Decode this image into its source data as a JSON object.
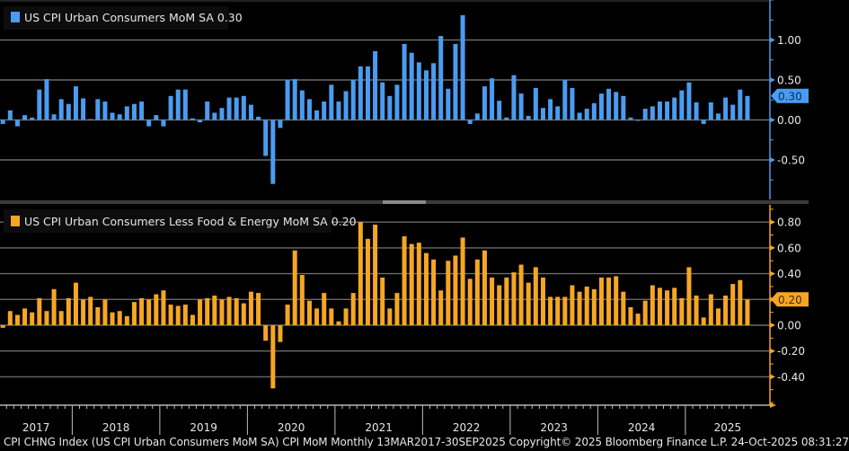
{
  "footer_text": "CPI CHNG Index (US CPI Urban Consumers MoM SA) CPI MoM Monthly 13MAR2017-30SEP2025 Copyright© 2025 Bloomberg Finance L.P. 24-Oct-2025 08:31:27",
  "colors": {
    "headline": "#4a9cf0",
    "core": "#f5a623",
    "background": "#000000",
    "grid": "#6a6a6a"
  },
  "chart_data": [
    {
      "type": "bar",
      "title": "US CPI Urban Consumers MoM SA",
      "legend": "US CPI Urban Consumers MoM SA 0.30",
      "last_value_label": "0.30",
      "start_month": "2017-03",
      "end_month": "2025-09",
      "frequency": "monthly",
      "ylim": [
        -0.95,
        1.5
      ],
      "yticks": [
        1.0,
        0.5,
        0.0,
        -0.5
      ],
      "ytick_labels": [
        "1.00",
        "0.50",
        "0.00",
        "-0.50"
      ],
      "grid": true,
      "legend_position": "top-left",
      "values": [
        -0.05,
        0.12,
        -0.08,
        0.06,
        0.03,
        0.38,
        0.51,
        0.07,
        0.26,
        0.2,
        0.42,
        0.27,
        0.01,
        0.26,
        0.23,
        0.09,
        0.07,
        0.17,
        0.2,
        0.23,
        -0.08,
        0.06,
        -0.08,
        0.3,
        0.38,
        0.38,
        0.02,
        -0.03,
        0.23,
        0.09,
        0.15,
        0.28,
        0.28,
        0.3,
        0.19,
        0.04,
        -0.45,
        -0.8,
        -0.1,
        0.5,
        0.51,
        0.37,
        0.26,
        0.12,
        0.23,
        0.44,
        0.23,
        0.36,
        0.5,
        0.67,
        0.67,
        0.86,
        0.47,
        0.3,
        0.44,
        0.95,
        0.84,
        0.72,
        0.62,
        0.71,
        1.05,
        0.39,
        0.95,
        1.31,
        -0.05,
        0.08,
        0.42,
        0.52,
        0.24,
        0.03,
        0.56,
        0.33,
        0.05,
        0.4,
        0.15,
        0.26,
        0.17,
        0.5,
        0.4,
        0.09,
        0.14,
        0.21,
        0.33,
        0.39,
        0.35,
        0.3,
        0.03,
        0.0,
        0.14,
        0.17,
        0.23,
        0.23,
        0.28,
        0.37,
        0.47,
        0.22,
        -0.05,
        0.22,
        0.08,
        0.28,
        0.19,
        0.38,
        0.3
      ]
    },
    {
      "type": "bar",
      "title": "US CPI Urban Consumers Less Food & Energy MoM SA",
      "legend": "US CPI Urban Consumers Less Food & Energy MoM SA 0.20",
      "last_value_label": "0.20",
      "start_month": "2017-03",
      "end_month": "2025-09",
      "frequency": "monthly",
      "ylim": [
        -0.62,
        0.93
      ],
      "yticks": [
        0.8,
        0.6,
        0.4,
        0.2,
        0.0,
        -0.2,
        -0.4
      ],
      "ytick_labels": [
        "0.80",
        "0.60",
        "0.40",
        "0.20",
        "0.00",
        "-0.20",
        "-0.40"
      ],
      "grid": true,
      "legend_position": "top-left",
      "values": [
        -0.02,
        0.11,
        0.08,
        0.13,
        0.1,
        0.21,
        0.11,
        0.28,
        0.11,
        0.21,
        0.33,
        0.2,
        0.22,
        0.14,
        0.2,
        0.1,
        0.11,
        0.07,
        0.18,
        0.21,
        0.2,
        0.24,
        0.27,
        0.16,
        0.15,
        0.16,
        0.08,
        0.2,
        0.21,
        0.23,
        0.2,
        0.22,
        0.21,
        0.17,
        0.26,
        0.25,
        -0.12,
        -0.49,
        -0.13,
        0.16,
        0.58,
        0.39,
        0.19,
        0.13,
        0.25,
        0.13,
        0.03,
        0.13,
        0.25,
        0.8,
        0.67,
        0.78,
        0.37,
        0.13,
        0.25,
        0.69,
        0.63,
        0.64,
        0.56,
        0.51,
        0.27,
        0.5,
        0.54,
        0.68,
        0.36,
        0.51,
        0.58,
        0.37,
        0.31,
        0.37,
        0.41,
        0.47,
        0.33,
        0.45,
        0.37,
        0.22,
        0.22,
        0.22,
        0.31,
        0.26,
        0.3,
        0.28,
        0.37,
        0.37,
        0.38,
        0.26,
        0.14,
        0.09,
        0.19,
        0.31,
        0.29,
        0.27,
        0.29,
        0.21,
        0.45,
        0.23,
        0.06,
        0.24,
        0.13,
        0.23,
        0.32,
        0.35,
        0.2
      ]
    }
  ],
  "x_axis": {
    "year_labels": [
      "2017",
      "2018",
      "2019",
      "2020",
      "2021",
      "2022",
      "2023",
      "2024",
      "2025"
    ]
  }
}
